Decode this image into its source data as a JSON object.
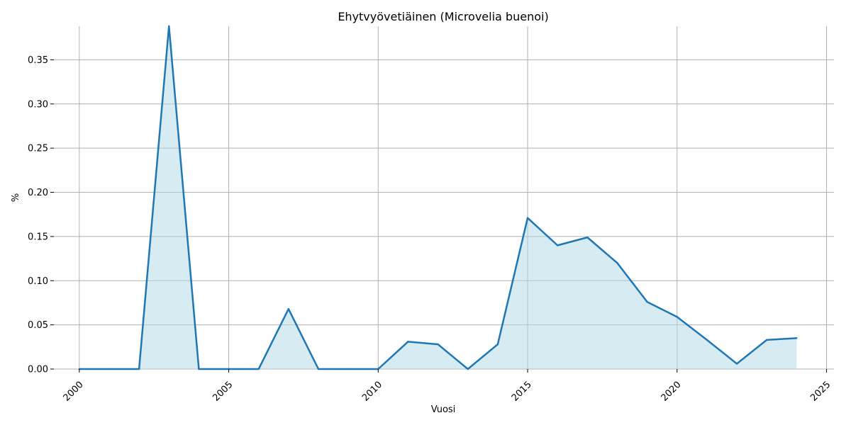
{
  "chart_data": {
    "type": "area",
    "title": "Ehytvyövetiäinen (Microvelia buenoi)",
    "xlabel": "Vuosi",
    "ylabel": "%",
    "xlim": [
      1999.15,
      2025.25
    ],
    "ylim": [
      0,
      0.388
    ],
    "x_ticks": [
      2000,
      2005,
      2010,
      2015,
      2020,
      2025
    ],
    "x_tick_labels": [
      "2000",
      "2005",
      "2010",
      "2015",
      "2020",
      "2025"
    ],
    "y_ticks": [
      0.0,
      0.05,
      0.1,
      0.15,
      0.2,
      0.25,
      0.3,
      0.35
    ],
    "y_tick_labels": [
      "0.00",
      "0.05",
      "0.10",
      "0.15",
      "0.20",
      "0.25",
      "0.30",
      "0.35"
    ],
    "grid": true,
    "series": [
      {
        "line_color": "#1f77b4",
        "fill_color": "#add8e6",
        "x": [
          2000,
          2001,
          2002,
          2003,
          2004,
          2005,
          2006,
          2007,
          2008,
          2009,
          2010,
          2011,
          2012,
          2013,
          2014,
          2015,
          2016,
          2017,
          2018,
          2019,
          2020,
          2021,
          2022,
          2023,
          2024
        ],
        "y": [
          0.0,
          0.0,
          0.0,
          0.388,
          0.0,
          0.0,
          0.0,
          0.068,
          0.0,
          0.0,
          0.0,
          0.031,
          0.028,
          0.0,
          0.028,
          0.171,
          0.14,
          0.149,
          0.12,
          0.076,
          0.059,
          0.033,
          0.006,
          0.033,
          0.035
        ]
      }
    ]
  }
}
